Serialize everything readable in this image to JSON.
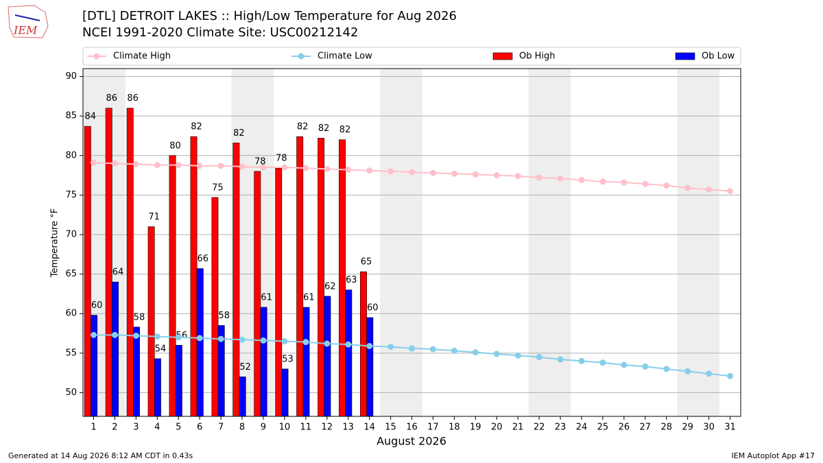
{
  "logo_text": "IEM",
  "chart_data": {
    "type": "bar",
    "title": "[DTL] DETROIT LAKES :: High/Low Temperature for Aug 2026",
    "subtitle": "NCEI 1991-2020 Climate Site: USC00212142",
    "xlabel": "August 2026",
    "ylabel": "Temperature °F",
    "x": [
      1,
      2,
      3,
      4,
      5,
      6,
      7,
      8,
      9,
      10,
      11,
      12,
      13,
      14,
      15,
      16,
      17,
      18,
      19,
      20,
      21,
      22,
      23,
      24,
      25,
      26,
      27,
      28,
      29,
      30,
      31
    ],
    "xlim": [
      0.5,
      31.5
    ],
    "xticks": [
      1,
      2,
      3,
      4,
      5,
      6,
      7,
      8,
      9,
      10,
      11,
      12,
      13,
      14,
      15,
      16,
      17,
      18,
      19,
      20,
      21,
      22,
      23,
      24,
      25,
      26,
      27,
      28,
      29,
      30,
      31
    ],
    "ylim": [
      47,
      91
    ],
    "yticks": [
      50,
      55,
      60,
      65,
      70,
      75,
      80,
      85,
      90
    ],
    "grid": true,
    "shaded_ranges": [
      [
        0.5,
        2.5
      ],
      [
        7.5,
        9.5
      ],
      [
        14.5,
        16.5
      ],
      [
        21.5,
        23.5
      ],
      [
        28.5,
        30.5
      ]
    ],
    "series": [
      {
        "name": "Climate High",
        "type": "line",
        "color": "#ffc0cb",
        "values": [
          79.1,
          79.0,
          78.9,
          78.8,
          78.8,
          78.7,
          78.7,
          78.6,
          78.5,
          78.5,
          78.4,
          78.3,
          78.2,
          78.1,
          78.0,
          77.9,
          77.8,
          77.7,
          77.6,
          77.5,
          77.4,
          77.2,
          77.1,
          76.9,
          76.7,
          76.6,
          76.4,
          76.2,
          75.9,
          75.7,
          75.5
        ]
      },
      {
        "name": "Climate Low",
        "type": "line",
        "color": "#87ceeb",
        "values": [
          57.3,
          57.3,
          57.2,
          57.1,
          57.0,
          56.9,
          56.8,
          56.7,
          56.6,
          56.5,
          56.4,
          56.2,
          56.1,
          55.9,
          55.8,
          55.6,
          55.5,
          55.3,
          55.1,
          54.9,
          54.7,
          54.5,
          54.2,
          54.0,
          53.8,
          53.5,
          53.3,
          53.0,
          52.7,
          52.4,
          52.1
        ]
      },
      {
        "name": "Ob High",
        "type": "bar",
        "color": "#ff0000",
        "values": [
          83.7,
          86,
          86,
          71,
          80,
          82.4,
          74.7,
          81.6,
          78,
          78.4,
          82.4,
          82.2,
          82,
          65.3,
          null,
          null,
          null,
          null,
          null,
          null,
          null,
          null,
          null,
          null,
          null,
          null,
          null,
          null,
          null,
          null,
          null
        ],
        "value_labels": [
          "84",
          "86",
          "86",
          "71",
          "80",
          "82",
          "75",
          "82",
          "78",
          "78",
          "82",
          "82",
          "82",
          "65",
          null,
          null,
          null,
          null,
          null,
          null,
          null,
          null,
          null,
          null,
          null,
          null,
          null,
          null,
          null,
          null,
          null
        ]
      },
      {
        "name": "Ob Low",
        "type": "bar",
        "color": "#0000ff",
        "values": [
          59.8,
          64,
          58.3,
          54.3,
          56,
          65.7,
          58.5,
          52,
          60.8,
          53,
          60.8,
          62.2,
          63,
          59.5,
          null,
          null,
          null,
          null,
          null,
          null,
          null,
          null,
          null,
          null,
          null,
          null,
          null,
          null,
          null,
          null,
          null
        ],
        "value_labels": [
          "60",
          "64",
          "58",
          "54",
          "56",
          "66",
          "58",
          "52",
          "61",
          "53",
          "61",
          "62",
          "63",
          "60",
          null,
          null,
          null,
          null,
          null,
          null,
          null,
          null,
          null,
          null,
          null,
          null,
          null,
          null,
          null,
          null,
          null
        ]
      }
    ],
    "footer_left": "Generated at 14 Aug 2026 8:12 AM CDT in 0.43s",
    "footer_right": "IEM Autoplot App #17"
  }
}
